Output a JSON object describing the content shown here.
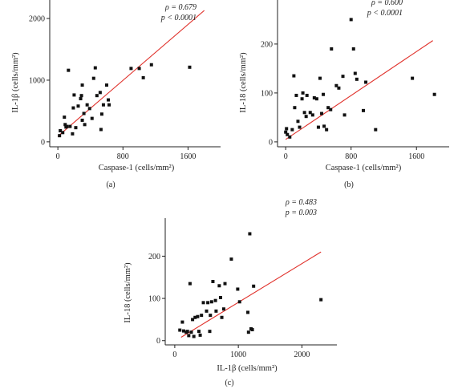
{
  "chart_data": [
    {
      "type": "scatter",
      "panel_label": "(a)",
      "xlabel": "Caspase-1 (cells/mm²)",
      "ylabel": "IL-1β (cells/mm²)",
      "xlim": [
        -100,
        2000
      ],
      "ylim": [
        -80,
        2300
      ],
      "xticks": [
        0,
        800,
        1600
      ],
      "yticks": [
        0,
        1000,
        2000
      ],
      "stat_rho": "ρ = 0.679",
      "stat_p": "p < 0.0001",
      "fit": [
        [
          0,
          90
        ],
        [
          1800,
          2130
        ]
      ],
      "points": [
        [
          20,
          100
        ],
        [
          30,
          180
        ],
        [
          60,
          150
        ],
        [
          80,
          400
        ],
        [
          90,
          280
        ],
        [
          100,
          240
        ],
        [
          110,
          250
        ],
        [
          130,
          1160
        ],
        [
          150,
          250
        ],
        [
          180,
          130
        ],
        [
          190,
          550
        ],
        [
          200,
          760
        ],
        [
          220,
          230
        ],
        [
          250,
          580
        ],
        [
          280,
          700
        ],
        [
          290,
          750
        ],
        [
          300,
          920
        ],
        [
          300,
          350
        ],
        [
          320,
          460
        ],
        [
          330,
          280
        ],
        [
          360,
          600
        ],
        [
          390,
          540
        ],
        [
          420,
          380
        ],
        [
          440,
          1030
        ],
        [
          460,
          1200
        ],
        [
          480,
          750
        ],
        [
          520,
          800
        ],
        [
          530,
          200
        ],
        [
          540,
          450
        ],
        [
          560,
          600
        ],
        [
          600,
          920
        ],
        [
          620,
          680
        ],
        [
          630,
          600
        ],
        [
          900,
          1190
        ],
        [
          1000,
          1190
        ],
        [
          1050,
          1040
        ],
        [
          1150,
          1250
        ],
        [
          1620,
          1210
        ]
      ]
    },
    {
      "type": "scatter",
      "panel_label": "(b)",
      "xlabel": "Caspase-1 (cells/mm²)",
      "ylabel": "IL-18 (cells/mm²)",
      "xlim": [
        -100,
        2000
      ],
      "ylim": [
        -10,
        290
      ],
      "xticks": [
        0,
        800,
        1600
      ],
      "yticks": [
        0,
        100,
        200
      ],
      "stat_rho": "ρ = 0.600",
      "stat_p": "p < 0.0001",
      "fit": [
        [
          0,
          5
        ],
        [
          1800,
          207
        ]
      ],
      "points": [
        [
          0,
          20
        ],
        [
          10,
          27
        ],
        [
          20,
          15
        ],
        [
          50,
          10
        ],
        [
          80,
          25
        ],
        [
          100,
          135
        ],
        [
          110,
          70
        ],
        [
          130,
          95
        ],
        [
          150,
          42
        ],
        [
          170,
          30
        ],
        [
          200,
          88
        ],
        [
          210,
          100
        ],
        [
          230,
          60
        ],
        [
          250,
          52
        ],
        [
          260,
          95
        ],
        [
          300,
          60
        ],
        [
          330,
          55
        ],
        [
          350,
          90
        ],
        [
          380,
          88
        ],
        [
          400,
          30
        ],
        [
          420,
          130
        ],
        [
          440,
          58
        ],
        [
          460,
          97
        ],
        [
          470,
          32
        ],
        [
          500,
          25
        ],
        [
          520,
          70
        ],
        [
          550,
          66
        ],
        [
          560,
          190
        ],
        [
          620,
          115
        ],
        [
          650,
          110
        ],
        [
          700,
          134
        ],
        [
          720,
          55
        ],
        [
          800,
          250
        ],
        [
          830,
          190
        ],
        [
          850,
          140
        ],
        [
          870,
          128
        ],
        [
          950,
          64
        ],
        [
          980,
          122
        ],
        [
          1100,
          25
        ],
        [
          1550,
          130
        ],
        [
          1820,
          97
        ]
      ]
    },
    {
      "type": "scatter",
      "panel_label": "(c)",
      "xlabel": "IL-1β (cells/mm²)",
      "ylabel": "IL-18 (cells/mm²)",
      "xlim": [
        -150,
        2550
      ],
      "ylim": [
        -10,
        290
      ],
      "xticks": [
        0,
        1000,
        2000
      ],
      "yticks": [
        0,
        100,
        200
      ],
      "stat_rho": "ρ = 0.483",
      "stat_p": "p = 0.003",
      "fit": [
        [
          100,
          8
        ],
        [
          2300,
          210
        ]
      ],
      "points": [
        [
          80,
          25
        ],
        [
          120,
          44
        ],
        [
          140,
          23
        ],
        [
          180,
          20
        ],
        [
          200,
          22
        ],
        [
          220,
          12
        ],
        [
          240,
          135
        ],
        [
          260,
          20
        ],
        [
          280,
          50
        ],
        [
          300,
          10
        ],
        [
          320,
          55
        ],
        [
          360,
          57
        ],
        [
          380,
          22
        ],
        [
          400,
          13
        ],
        [
          420,
          60
        ],
        [
          450,
          90
        ],
        [
          500,
          70
        ],
        [
          520,
          90
        ],
        [
          550,
          22
        ],
        [
          560,
          60
        ],
        [
          580,
          92
        ],
        [
          600,
          140
        ],
        [
          640,
          95
        ],
        [
          650,
          70
        ],
        [
          700,
          130
        ],
        [
          720,
          102
        ],
        [
          740,
          55
        ],
        [
          770,
          75
        ],
        [
          790,
          135
        ],
        [
          890,
          193
        ],
        [
          990,
          122
        ],
        [
          1020,
          92
        ],
        [
          1150,
          67
        ],
        [
          1160,
          20
        ],
        [
          1180,
          253
        ],
        [
          1200,
          28
        ],
        [
          1220,
          26
        ],
        [
          1240,
          129
        ],
        [
          2300,
          97
        ]
      ]
    }
  ]
}
